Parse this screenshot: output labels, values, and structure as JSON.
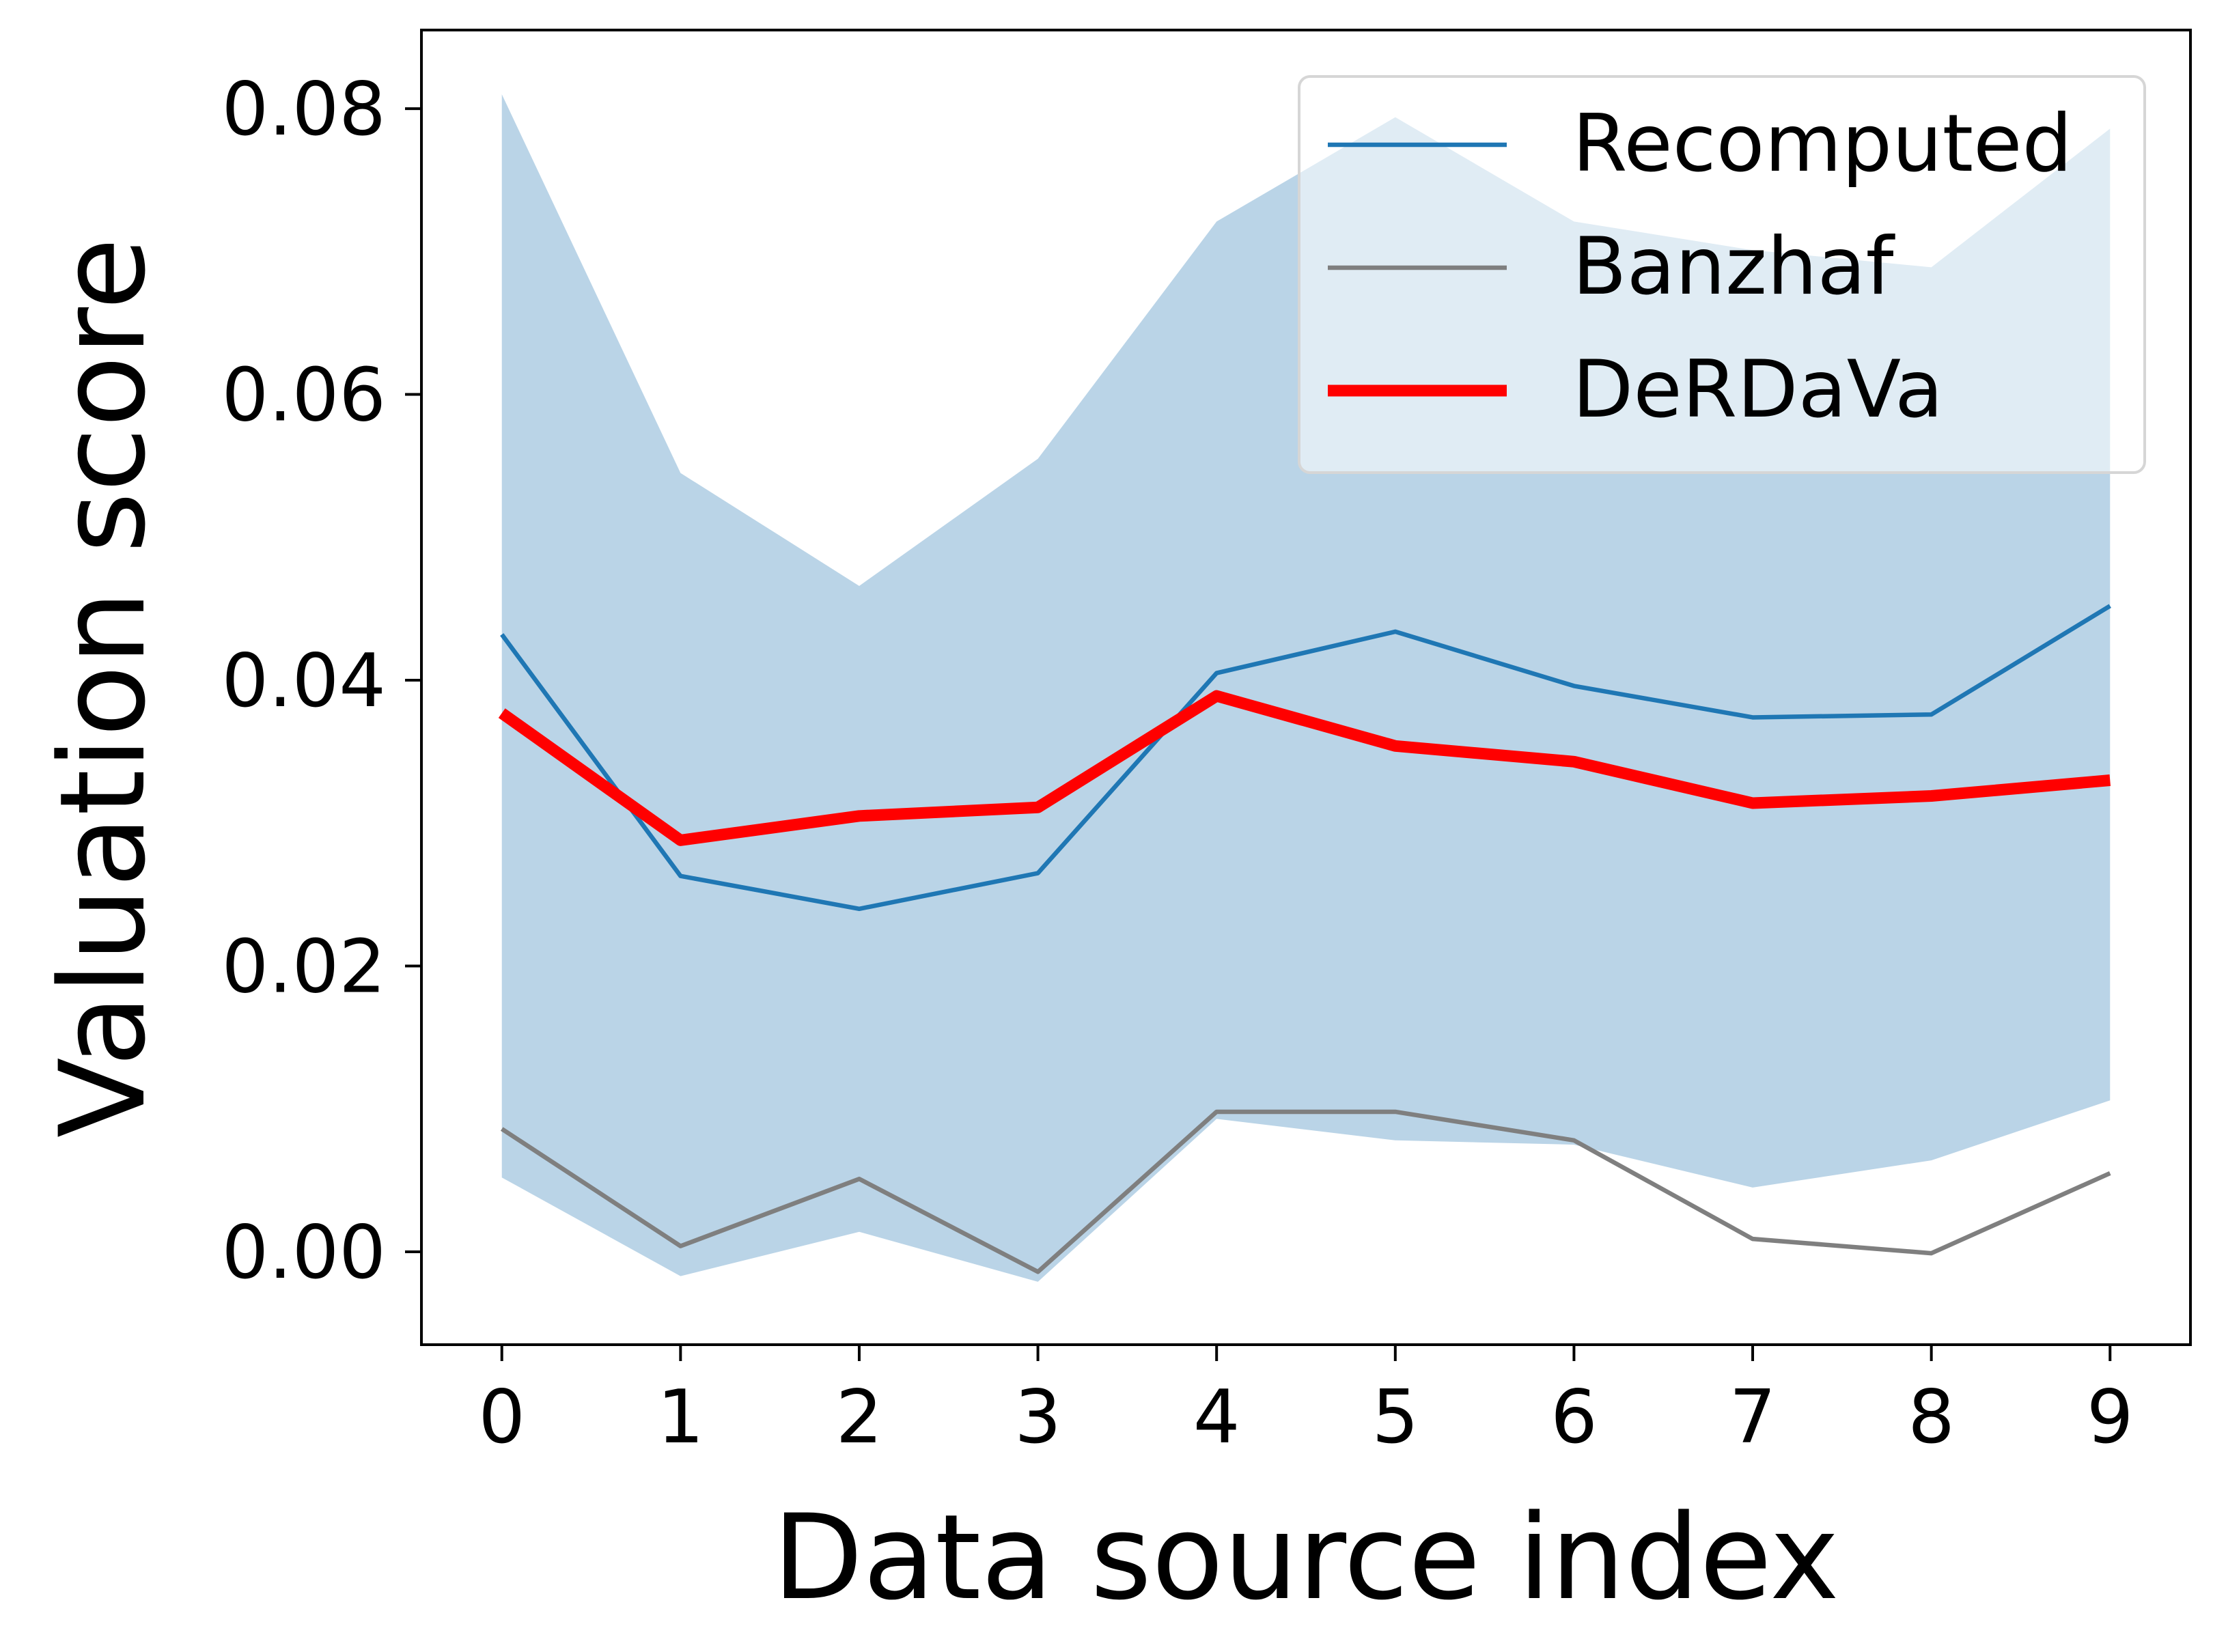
{
  "chart_data": {
    "type": "line",
    "title": "",
    "xlabel": "Data source index",
    "ylabel": "Valuation score",
    "x": [
      0,
      1,
      2,
      3,
      4,
      5,
      6,
      7,
      8,
      9
    ],
    "xlim": [
      -0.45,
      9.45
    ],
    "ylim": [
      -0.0065,
      0.0855
    ],
    "yticks": [
      0.0,
      0.02,
      0.04,
      0.06,
      0.08
    ],
    "ytick_labels": [
      "0.00",
      "0.02",
      "0.04",
      "0.06",
      "0.08"
    ],
    "xtick_labels": [
      "0",
      "1",
      "2",
      "3",
      "4",
      "5",
      "6",
      "7",
      "8",
      "9"
    ],
    "grid": false,
    "legend_position": "top-right",
    "band": {
      "color": "#bad4e7",
      "upper": [
        0.081,
        0.0545,
        0.0466,
        0.0555,
        0.0721,
        0.0794,
        0.0721,
        0.0701,
        0.0689,
        0.0786
      ],
      "lower": [
        0.0052,
        -0.0017,
        0.0014,
        -0.0021,
        0.0093,
        0.0078,
        0.0075,
        0.0045,
        0.0064,
        0.0106
      ]
    },
    "series": [
      {
        "name": "Recomputed",
        "color": "#1f77b4",
        "width": "thin",
        "values": [
          0.0432,
          0.0263,
          0.024,
          0.0265,
          0.0405,
          0.0434,
          0.0396,
          0.0374,
          0.0376,
          0.0452
        ]
      },
      {
        "name": "Banzhaf",
        "color": "#7f7f7f",
        "width": "thin",
        "values": [
          0.0086,
          0.0004,
          0.0051,
          -0.0014,
          0.0098,
          0.0098,
          0.0078,
          0.0009,
          -0.0001,
          0.0055
        ]
      },
      {
        "name": "DeRDaVa",
        "color": "#ff0000",
        "width": "thick",
        "values": [
          0.0377,
          0.0288,
          0.0305,
          0.0311,
          0.0389,
          0.0354,
          0.0343,
          0.0314,
          0.0319,
          0.033
        ]
      }
    ]
  }
}
